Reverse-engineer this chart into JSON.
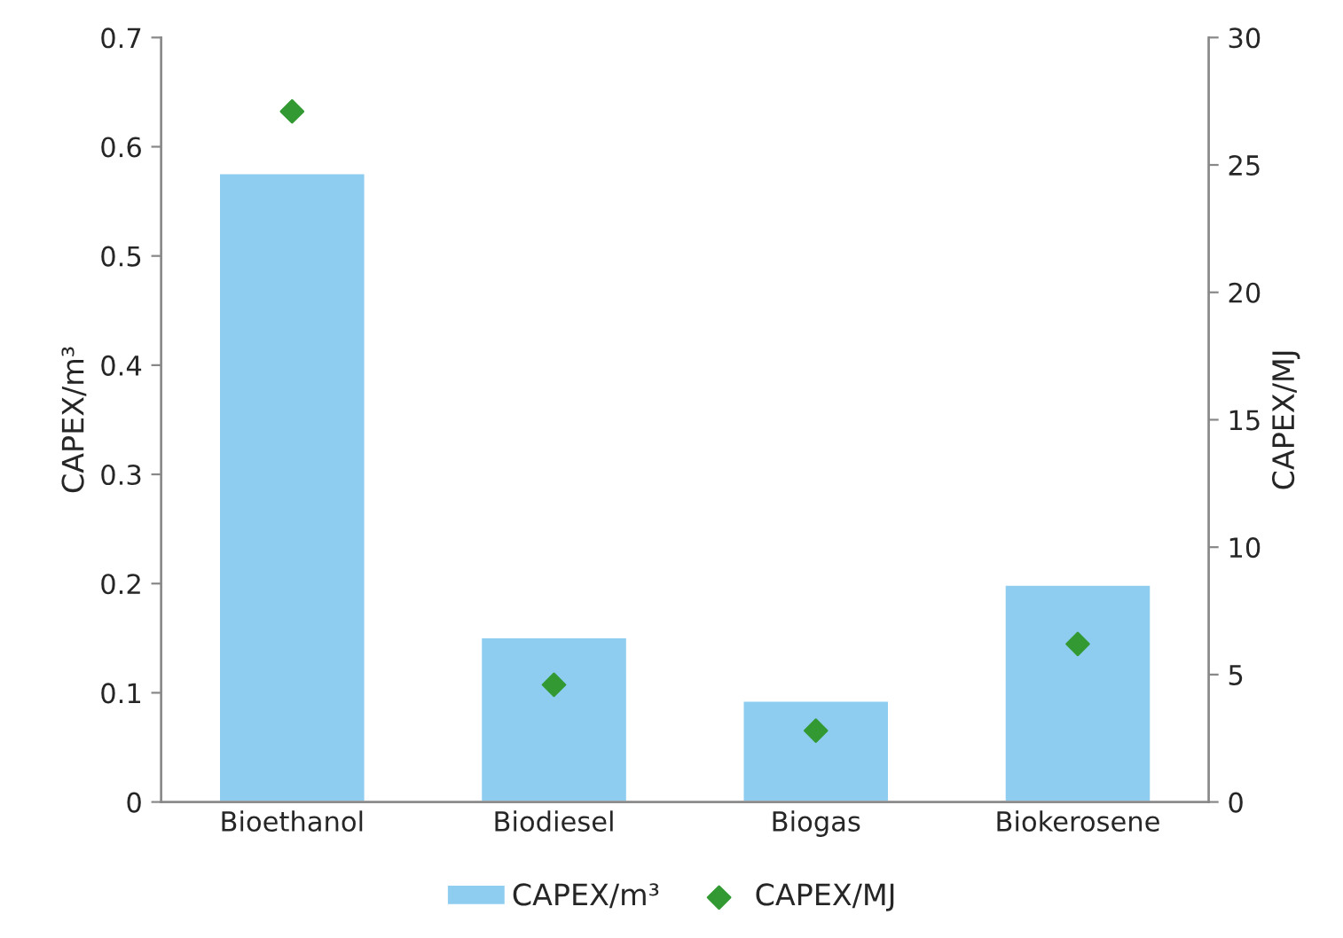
{
  "chart_data": {
    "type": "bar",
    "categories": [
      "Bioethanol",
      "Biodiesel",
      "Biogas",
      "Biokerosene"
    ],
    "ylabel": "CAPEX/m³",
    "y2label": "CAPEX/MJ",
    "series": [
      {
        "name": "CAPEX/m³",
        "color": "#8ecdf0",
        "values": [
          0.576,
          0.151,
          0.093,
          0.199
        ]
      },
      {
        "name": "CAPEX/MJ",
        "type": "scatter",
        "axis": "y2",
        "color": "#339933",
        "marker": "diamond",
        "values": [
          27.1,
          4.6,
          2.8,
          6.2
        ]
      }
    ],
    "ylim": [
      0,
      0.7
    ],
    "yticks": [
      0,
      0.1,
      0.2,
      0.3,
      0.4,
      0.5,
      0.6,
      0.7
    ],
    "y2lim": [
      0,
      30
    ],
    "y2ticks": [
      0,
      5,
      10,
      15,
      20,
      25,
      30
    ],
    "grid": false,
    "legend": "bottom"
  }
}
